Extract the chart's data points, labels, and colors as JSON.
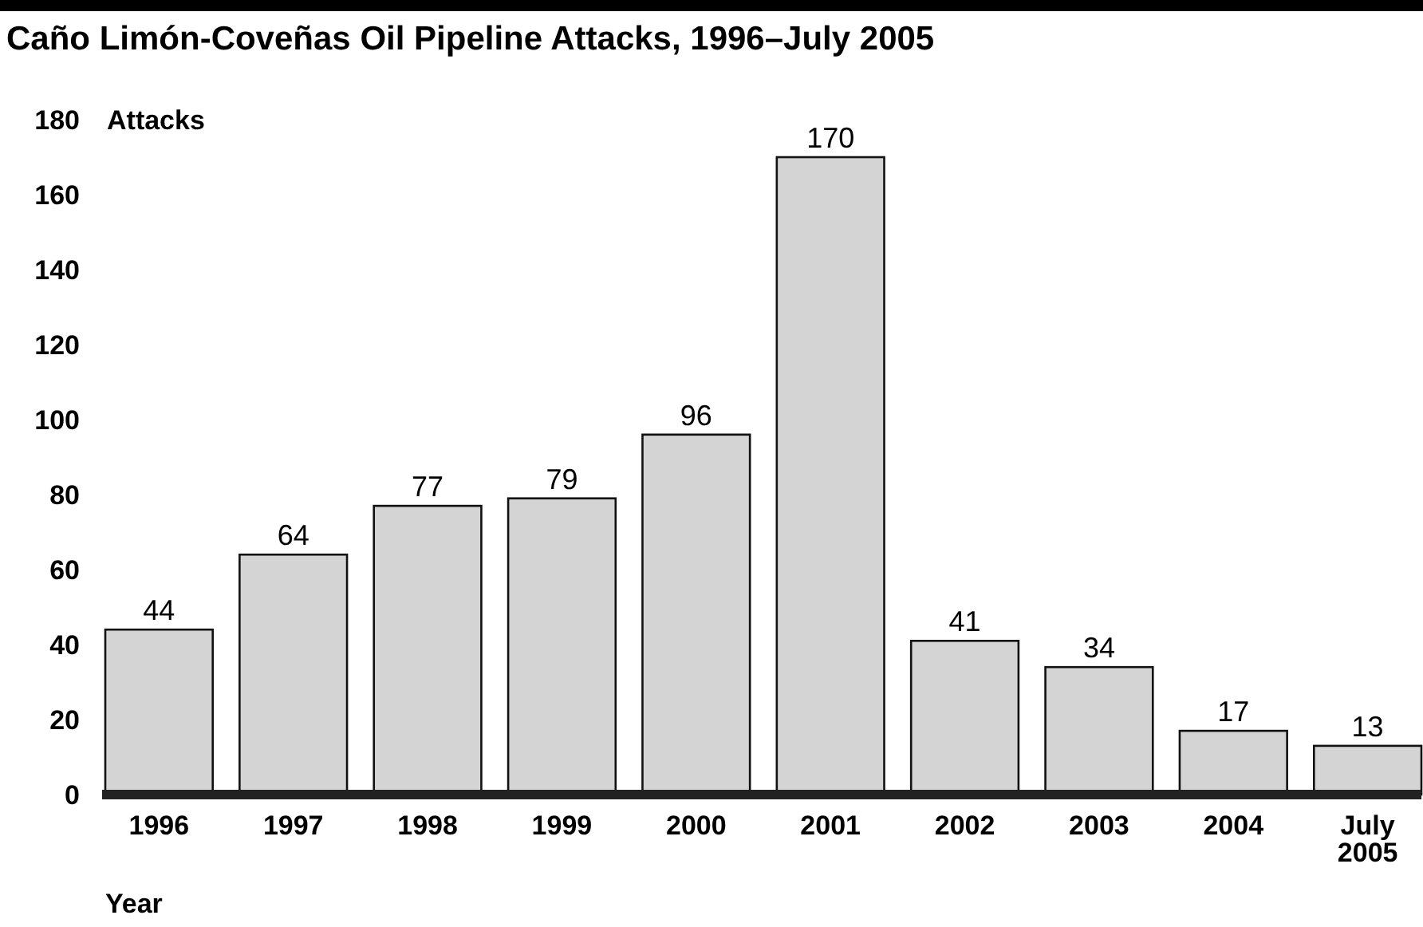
{
  "chart_data": {
    "type": "bar",
    "title": "Caño Limón-Coveñas Oil Pipeline Attacks, 1996–July 2005",
    "xlabel": "Year",
    "ylabel": "Attacks",
    "categories": [
      "1996",
      "1997",
      "1998",
      "1999",
      "2000",
      "2001",
      "2002",
      "2003",
      "2004",
      "July 2005"
    ],
    "values": [
      44,
      64,
      77,
      79,
      96,
      170,
      41,
      34,
      17,
      13
    ],
    "color": "#d4d4d4",
    "ylim": [
      0,
      180
    ],
    "yticks": [
      0,
      20,
      40,
      60,
      80,
      100,
      120,
      140,
      160,
      180
    ],
    "grid": false,
    "data_labels": true
  }
}
